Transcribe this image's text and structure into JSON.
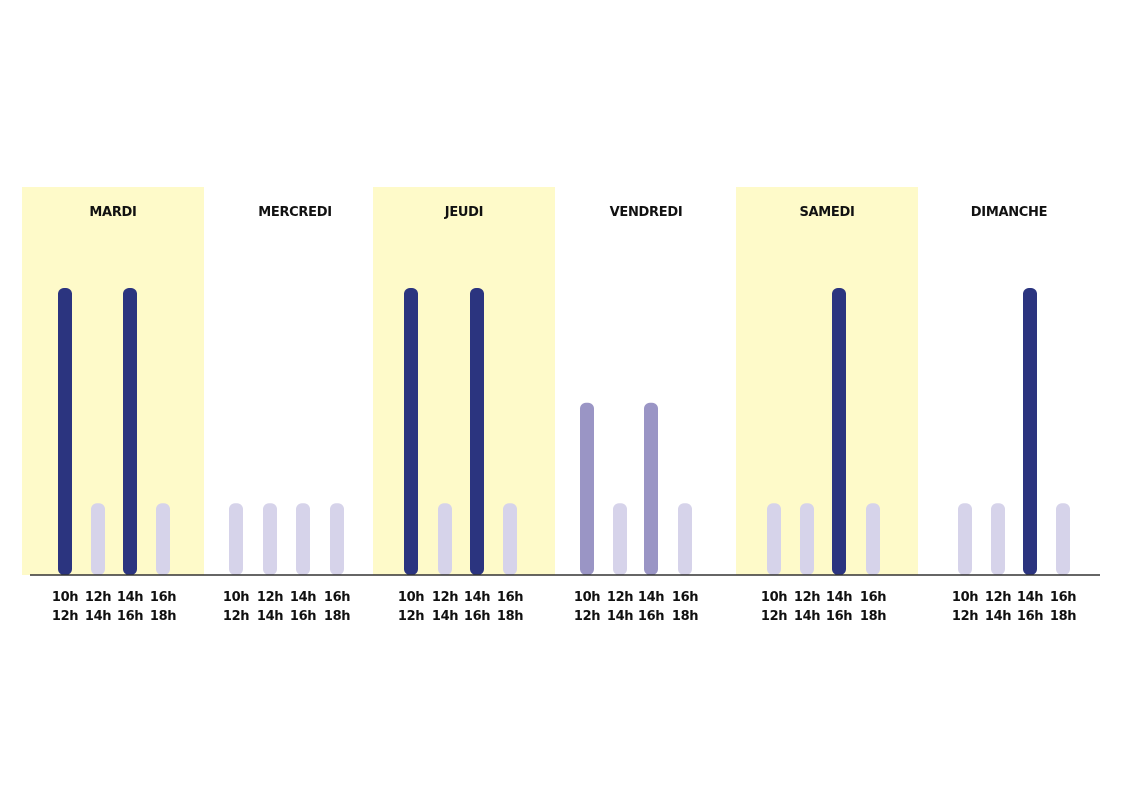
{
  "chart_data": {
    "type": "bar",
    "title": "",
    "xlabel": "",
    "ylabel": "",
    "ylim": [
      0,
      4
    ],
    "slots": [
      {
        "start": "10h",
        "end": "12h"
      },
      {
        "start": "12h",
        "end": "14h"
      },
      {
        "start": "14h",
        "end": "16h"
      },
      {
        "start": "16h",
        "end": "18h"
      }
    ],
    "days": [
      {
        "name": "MARDI",
        "highlight": true,
        "values": [
          4,
          1,
          4,
          1
        ],
        "levels": [
          "high",
          "low",
          "high",
          "low"
        ]
      },
      {
        "name": "MERCREDI",
        "highlight": false,
        "values": [
          1,
          1,
          1,
          1
        ],
        "levels": [
          "low",
          "low",
          "low",
          "low"
        ]
      },
      {
        "name": "JEUDI",
        "highlight": true,
        "values": [
          4,
          1,
          4,
          1
        ],
        "levels": [
          "high",
          "low",
          "high",
          "low"
        ]
      },
      {
        "name": "VENDREDI",
        "highlight": false,
        "values": [
          2.4,
          1,
          2.4,
          1
        ],
        "levels": [
          "mid",
          "low",
          "mid",
          "low"
        ]
      },
      {
        "name": "SAMEDI",
        "highlight": true,
        "values": [
          1,
          1,
          4,
          1
        ],
        "levels": [
          "low",
          "low",
          "high",
          "low"
        ]
      },
      {
        "name": "DIMANCHE",
        "highlight": false,
        "values": [
          1,
          1,
          4,
          1
        ],
        "levels": [
          "low",
          "low",
          "high",
          "low"
        ]
      }
    ],
    "colors": {
      "high": "#2b347f",
      "mid": "#9a95c5",
      "low": "#d6d3ea",
      "highlight_band": "#fefac9",
      "axis": "#333333"
    },
    "grid": false,
    "legend": "none"
  }
}
